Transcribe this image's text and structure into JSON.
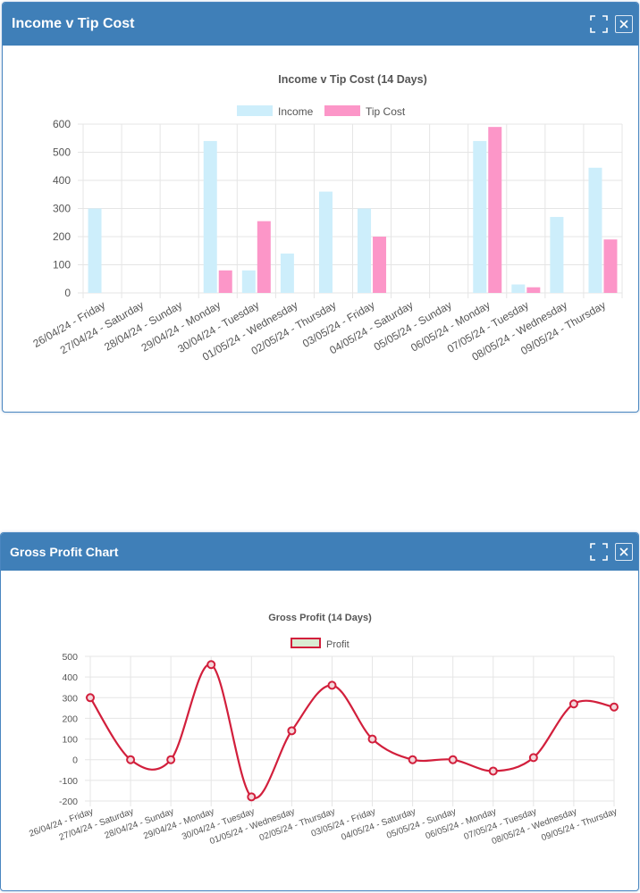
{
  "colors": {
    "header_bg": "#3f7fb8",
    "income_bar": "#cdeefb",
    "tip_bar": "#fc96c8",
    "profit_line": "#d21f3c",
    "profit_legend_fill": "#d9ecd2",
    "grid": "#e5e5e5"
  },
  "panels": {
    "income": {
      "title": "Income v Tip Cost",
      "maximize_icon": "maximize-icon",
      "close_icon": "close-icon"
    },
    "profit": {
      "title": "Gross Profit Chart",
      "maximize_icon": "maximize-icon",
      "close_icon": "close-icon"
    }
  },
  "chart_data": [
    {
      "type": "bar",
      "title": "Income v Tip Cost (14 Days)",
      "legend_position": "top",
      "grid": true,
      "ylim": [
        0,
        600
      ],
      "yticks": [
        0,
        100,
        200,
        300,
        400,
        500,
        600
      ],
      "categories": [
        "26/04/24 - Friday",
        "27/04/24 - Saturday",
        "28/04/24 - Sunday",
        "29/04/24 - Monday",
        "30/04/24 - Tuesday",
        "01/05/24 - Wednesday",
        "02/05/24 - Thursday",
        "03/05/24 - Friday",
        "04/05/24 - Saturday",
        "05/05/24 - Sunday",
        "06/05/24 - Monday",
        "07/05/24 - Tuesday",
        "08/05/24 - Wednesday",
        "09/05/24 - Thursday"
      ],
      "series": [
        {
          "name": "Income",
          "values": [
            300,
            0,
            0,
            540,
            80,
            140,
            360,
            300,
            0,
            0,
            540,
            30,
            270,
            445
          ]
        },
        {
          "name": "Tip Cost",
          "values": [
            0,
            0,
            0,
            80,
            255,
            0,
            0,
            200,
            0,
            0,
            590,
            20,
            0,
            190
          ]
        }
      ]
    },
    {
      "type": "line",
      "title": "Gross Profit (14 Days)",
      "legend_position": "top",
      "grid": true,
      "ylim": [
        -200,
        500
      ],
      "yticks": [
        -200,
        -100,
        0,
        100,
        200,
        300,
        400,
        500
      ],
      "categories": [
        "26/04/24 - Friday",
        "27/04/24 - Saturday",
        "28/04/24 - Sunday",
        "29/04/24 - Monday",
        "30/04/24 - Tuesday",
        "01/05/24 - Wednesday",
        "02/05/24 - Thursday",
        "03/05/24 - Friday",
        "04/05/24 - Saturday",
        "05/05/24 - Sunday",
        "06/05/24 - Monday",
        "07/05/24 - Tuesday",
        "08/05/24 - Wednesday",
        "09/05/24 - Thursday"
      ],
      "series": [
        {
          "name": "Profit",
          "values": [
            300,
            0,
            0,
            460,
            -180,
            140,
            360,
            100,
            0,
            0,
            -55,
            10,
            270,
            255
          ]
        }
      ]
    }
  ]
}
